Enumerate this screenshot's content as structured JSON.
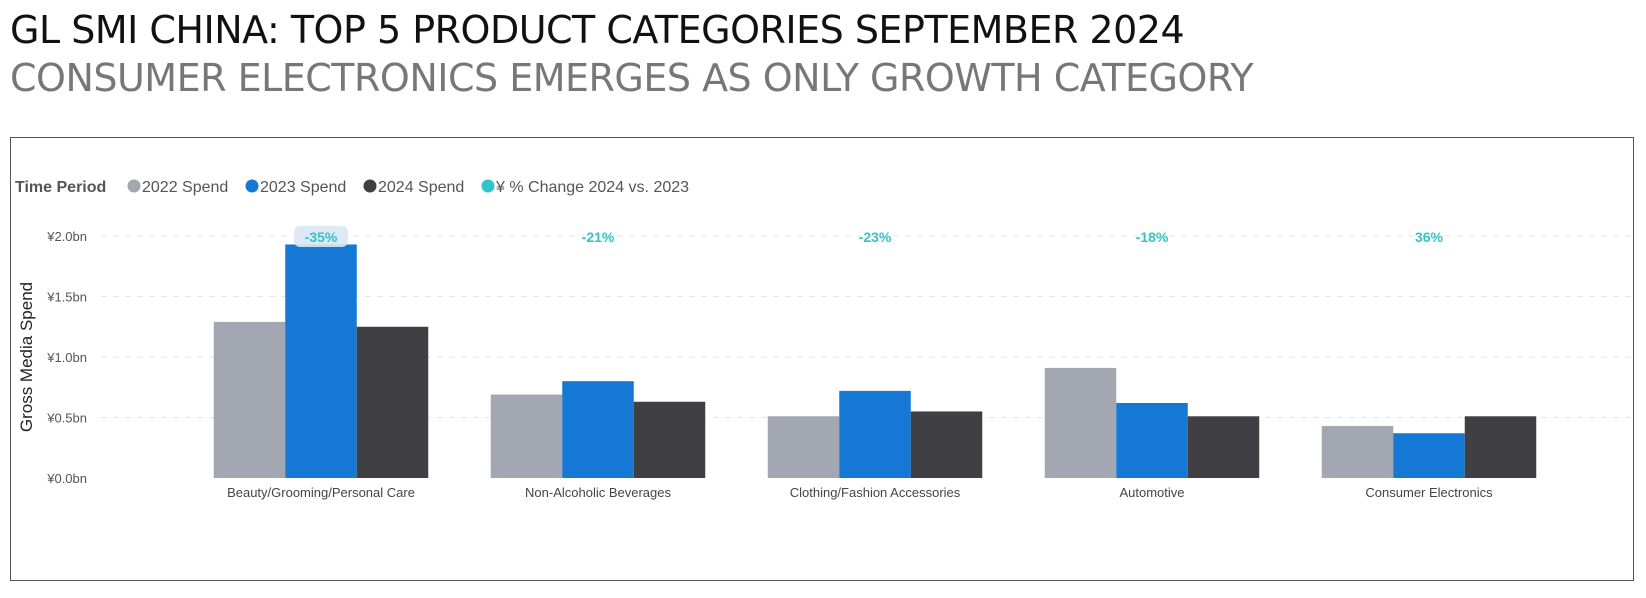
{
  "header": {
    "title": "GL SMI CHINA: TOP 5 PRODUCT CATEGORIES SEPTEMBER 2024",
    "subtitle": "CONSUMER ELECTRONICS EMERGES AS ONLY GROWTH CATEGORY"
  },
  "colors": {
    "s2022": "#a3a7b2",
    "s2023": "#1478d4",
    "s2024": "#403f43",
    "pct": "#34c3c6"
  },
  "chart_data": {
    "type": "bar",
    "legend_title": "Time Period",
    "legend_position": "top-left",
    "ylabel": "Gross Media Spend",
    "xlabel": "",
    "ylim": [
      0,
      2.0
    ],
    "yticks": [
      0,
      0.5,
      1.0,
      1.5,
      2.0
    ],
    "ytick_labels": [
      "¥0.0bn",
      "¥0.5bn",
      "¥1.0bn",
      "¥1.5bn",
      "¥2.0bn"
    ],
    "grid": true,
    "categories": [
      "Beauty/Grooming/Personal Care",
      "Non-Alcoholic Beverages",
      "Clothing/Fashion Accessories",
      "Automotive",
      "Consumer Electronics"
    ],
    "series": [
      {
        "name": "2022 Spend",
        "color": "#a3a7b2",
        "values": [
          1.29,
          0.69,
          0.51,
          0.91,
          0.43
        ]
      },
      {
        "name": "2023 Spend",
        "color": "#1478d4",
        "values": [
          1.93,
          0.8,
          0.72,
          0.62,
          0.37
        ]
      },
      {
        "name": "2024 Spend",
        "color": "#403f43",
        "values": [
          1.25,
          0.63,
          0.55,
          0.51,
          0.51
        ]
      }
    ],
    "pct_series": {
      "name": "¥ % Change 2024 vs. 2023",
      "color": "#34c3c6",
      "labels": [
        "-35%",
        "-21%",
        "-23%",
        "-18%",
        "36%"
      ]
    }
  }
}
